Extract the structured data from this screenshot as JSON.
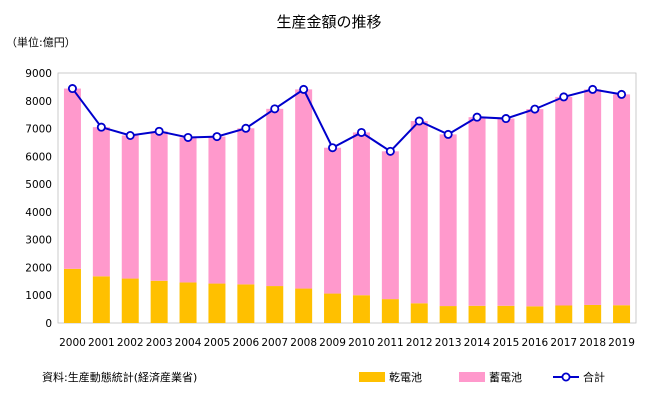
{
  "chart_data": {
    "type": "bar",
    "title": "生産金額の推移",
    "unit_label": "（単位:億円）",
    "source": "資料:生産動態統計(経済産業省)",
    "categories": [
      "2000",
      "2001",
      "2002",
      "2003",
      "2004",
      "2005",
      "2006",
      "2007",
      "2008",
      "2009",
      "2010",
      "2011",
      "2012",
      "2013",
      "2014",
      "2015",
      "2016",
      "2017",
      "2018",
      "2019"
    ],
    "ylim": [
      0,
      9000
    ],
    "yticks": [
      0,
      1000,
      2000,
      3000,
      4000,
      5000,
      6000,
      7000,
      8000,
      9000
    ],
    "stacked": true,
    "legend_position": "bottom-right",
    "series": [
      {
        "name": "乾電池",
        "kind": "bar",
        "color": "#FFC000",
        "values": [
          1950,
          1680,
          1600,
          1520,
          1460,
          1420,
          1390,
          1330,
          1240,
          1060,
          1000,
          860,
          710,
          610,
          620,
          620,
          600,
          630,
          650,
          640
        ]
      },
      {
        "name": "蓄電池",
        "kind": "bar",
        "color": "#FF99CC",
        "values": [
          6490,
          5370,
          5150,
          5380,
          5220,
          5290,
          5620,
          6380,
          7170,
          5250,
          5860,
          5320,
          6560,
          6180,
          6790,
          6740,
          7100,
          7510,
          7760,
          7590
        ]
      },
      {
        "name": "合計",
        "kind": "line",
        "color": "#0000CC",
        "values": [
          8440,
          7050,
          6750,
          6900,
          6680,
          6710,
          7010,
          7710,
          8410,
          6310,
          6860,
          6180,
          7270,
          6790,
          7410,
          7360,
          7700,
          8140,
          8410,
          8230
        ]
      }
    ]
  }
}
